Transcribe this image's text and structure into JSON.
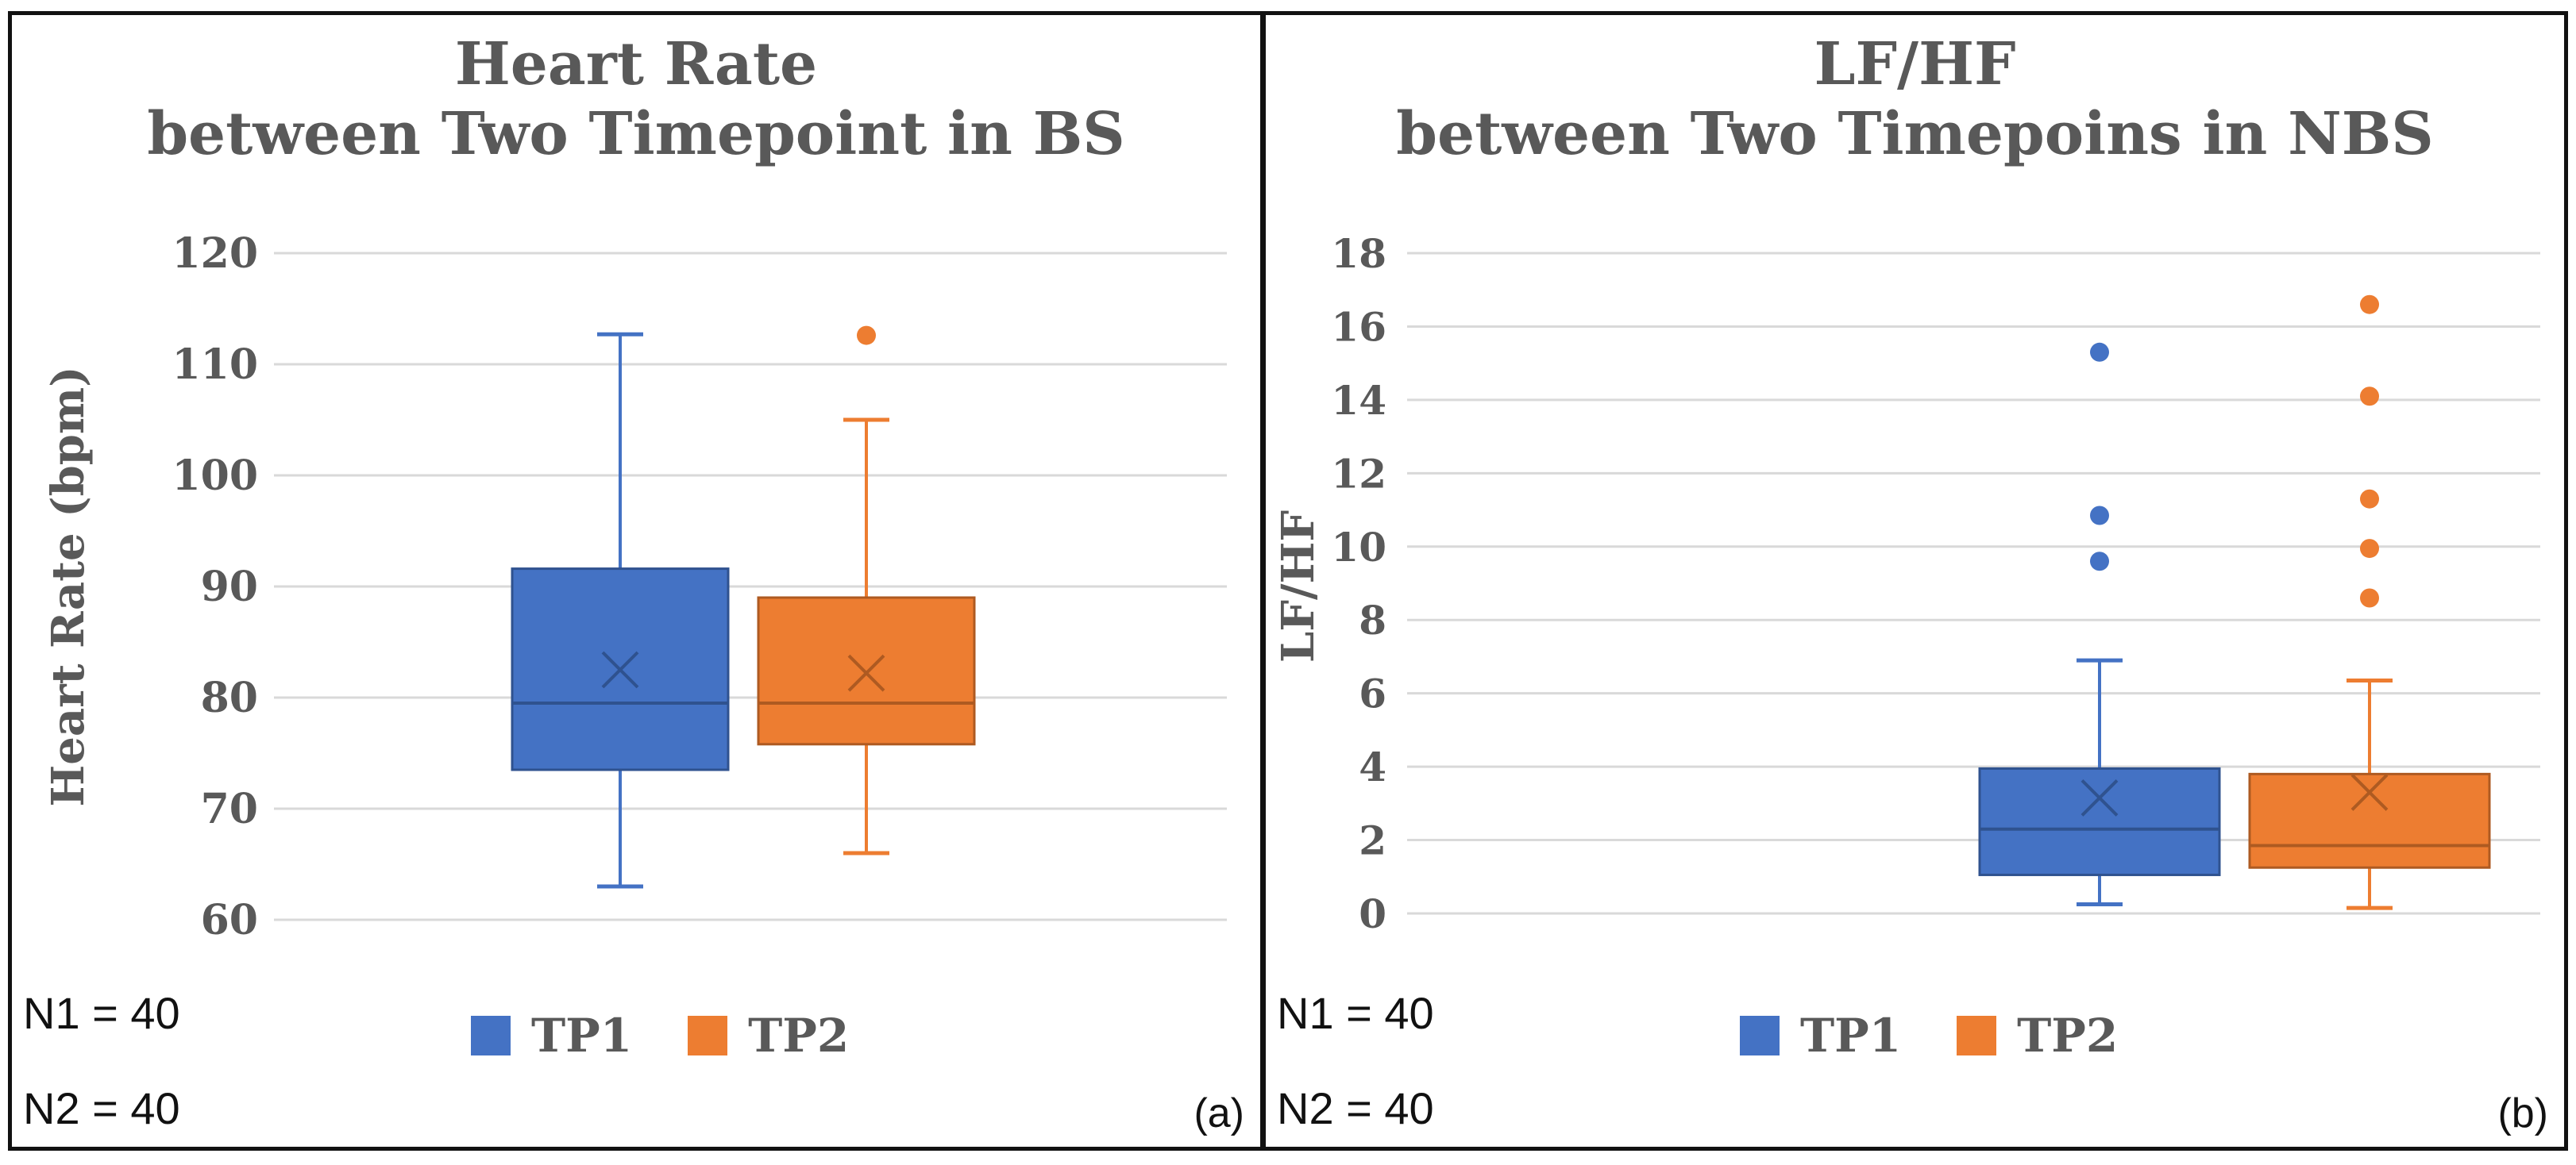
{
  "colors": {
    "tp1": "#4472C4",
    "tp2": "#ED7D31",
    "grid": "#D9D9D9",
    "text": "#595959"
  },
  "panels": [
    {
      "id": "a",
      "title_line1": "Heart Rate",
      "title_line2": "between Two Timepoint in BS",
      "n1": "N1 = 40",
      "n2": "N2 = 40",
      "sub_label": "(a)"
    },
    {
      "id": "b",
      "title_line1": "LF/HF",
      "title_line2": "between Two Timepoins in NBS",
      "n1": "N1 = 40",
      "n2": "N2 = 40",
      "sub_label": "(b)"
    }
  ],
  "legend": {
    "tp1": "TP1",
    "tp2": "TP2"
  },
  "chart_data": [
    {
      "type": "box",
      "title": "Heart Rate between Two Timepoint in BS",
      "ylabel": "Heart Rate (bpm)",
      "xlabel": "",
      "ylim": [
        60,
        120
      ],
      "yticks": [
        60,
        70,
        80,
        90,
        100,
        110,
        120
      ],
      "grid": true,
      "legend_position": "bottom",
      "series": [
        {
          "name": "TP1",
          "min": 63,
          "q1": 73.5,
          "median": 79.5,
          "q3": 91.6,
          "max": 112.7,
          "mean": 82.5,
          "outliers": []
        },
        {
          "name": "TP2",
          "min": 66,
          "q1": 75.8,
          "median": 79.5,
          "q3": 89,
          "max": 105,
          "mean": 82.2,
          "outliers": [
            112.6
          ]
        }
      ]
    },
    {
      "type": "box",
      "title": "LF/HF between Two Timepoins in NBS",
      "ylabel": "LF/HF",
      "xlabel": "",
      "ylim": [
        0,
        18
      ],
      "yticks": [
        0,
        2,
        4,
        6,
        8,
        10,
        12,
        14,
        16,
        18
      ],
      "grid": true,
      "legend_position": "bottom",
      "series": [
        {
          "name": "TP1",
          "min": 0.25,
          "q1": 1.05,
          "median": 2.3,
          "q3": 3.95,
          "max": 6.9,
          "mean": 3.15,
          "outliers": [
            9.6,
            10.85,
            15.3
          ]
        },
        {
          "name": "TP2",
          "min": 0.15,
          "q1": 1.25,
          "median": 1.85,
          "q3": 3.8,
          "max": 6.35,
          "mean": 3.3,
          "outliers": [
            8.6,
            9.95,
            11.3,
            14.1,
            16.6
          ]
        }
      ]
    }
  ]
}
